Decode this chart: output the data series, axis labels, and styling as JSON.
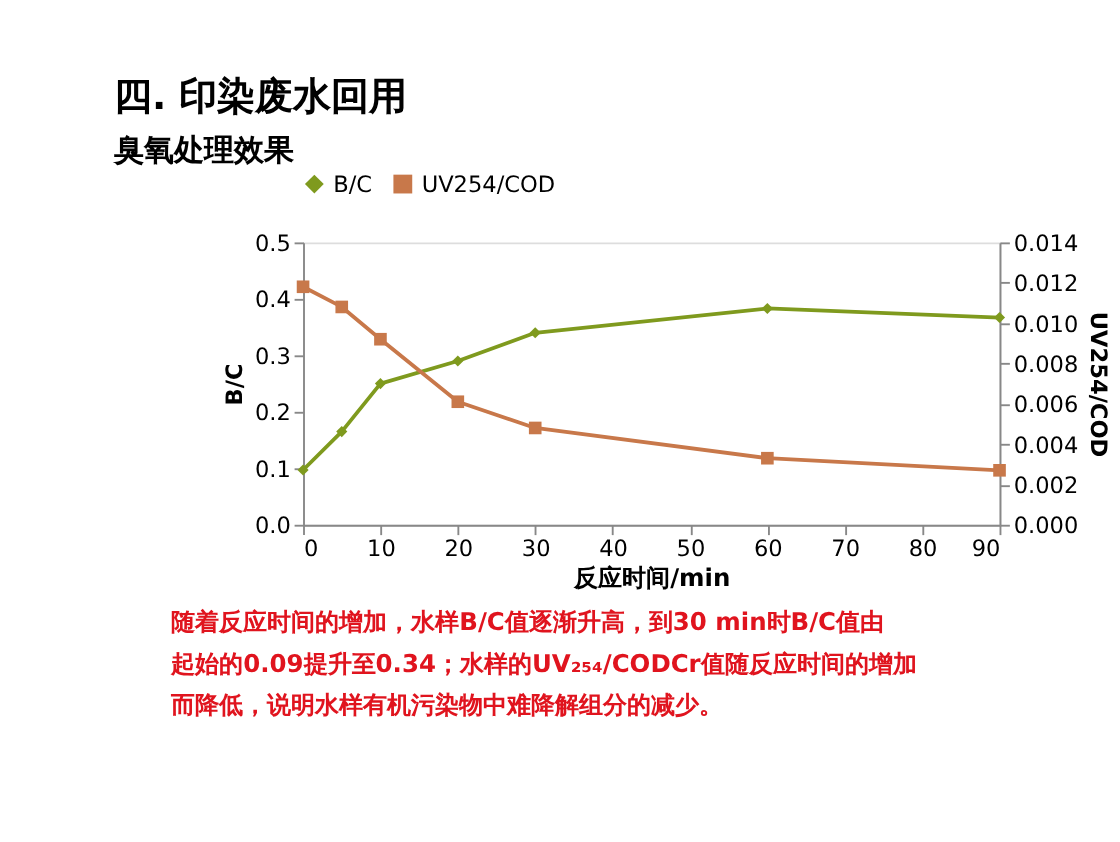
{
  "chart_data": {
    "type": "line",
    "title": "四. 印染废水回用",
    "subtitle": "臭氧处理效果",
    "x": [
      0,
      5,
      10,
      20,
      30,
      60,
      90
    ],
    "series": [
      {
        "name": "B/C",
        "color": "#7f9a1e",
        "marker": "diamond",
        "values": [
          0.097,
          0.165,
          0.25,
          0.29,
          0.34,
          0.383,
          0.367
        ]
      },
      {
        "name": "UV254/COD",
        "color": "#c8784a",
        "marker": "square",
        "axis": "y2",
        "values": [
          0.0118,
          0.0108,
          0.0092,
          0.0061,
          0.0048,
          0.0033,
          0.0027
        ]
      }
    ],
    "xlabel": "反应时间/min",
    "ylabel": "B/C",
    "y2label": "UV254/COD",
    "xlim": [
      0,
      90
    ],
    "xticks": [
      0,
      10,
      20,
      30,
      40,
      50,
      60,
      70,
      80,
      90
    ],
    "ylim": [
      0,
      0.5
    ],
    "yticks": [
      {
        "value": 0,
        "label": "0.0"
      },
      0.1,
      0.2,
      0.3,
      0.4,
      0.5
    ],
    "y2lim": [
      0,
      0.014
    ],
    "y2ticks": [
      {
        "value": 0,
        "label": "0.000"
      },
      {
        "value": 0.002,
        "label": "0.002"
      },
      {
        "value": 0.004,
        "label": "0.004"
      },
      {
        "value": 0.006,
        "label": "0.006"
      },
      {
        "value": 0.008,
        "label": "0.008"
      },
      {
        "value": 0.01,
        "label": "0.010"
      },
      {
        "value": 0.012,
        "label": "0.012"
      },
      {
        "value": 0.014,
        "label": "0.014"
      }
    ],
    "legend": "top",
    "grid": false,
    "line_style": "solid",
    "annotations": [
      "随着反应时间的增加，水样B/C值逐渐升高，到30 min时B/C值由",
      "起始的0.09提升至0.34；水样的UV₂₅₄/CODCr值随反应时间的增加",
      "而降低，说明水样有机污染物中难降解组分的减少。"
    ]
  }
}
